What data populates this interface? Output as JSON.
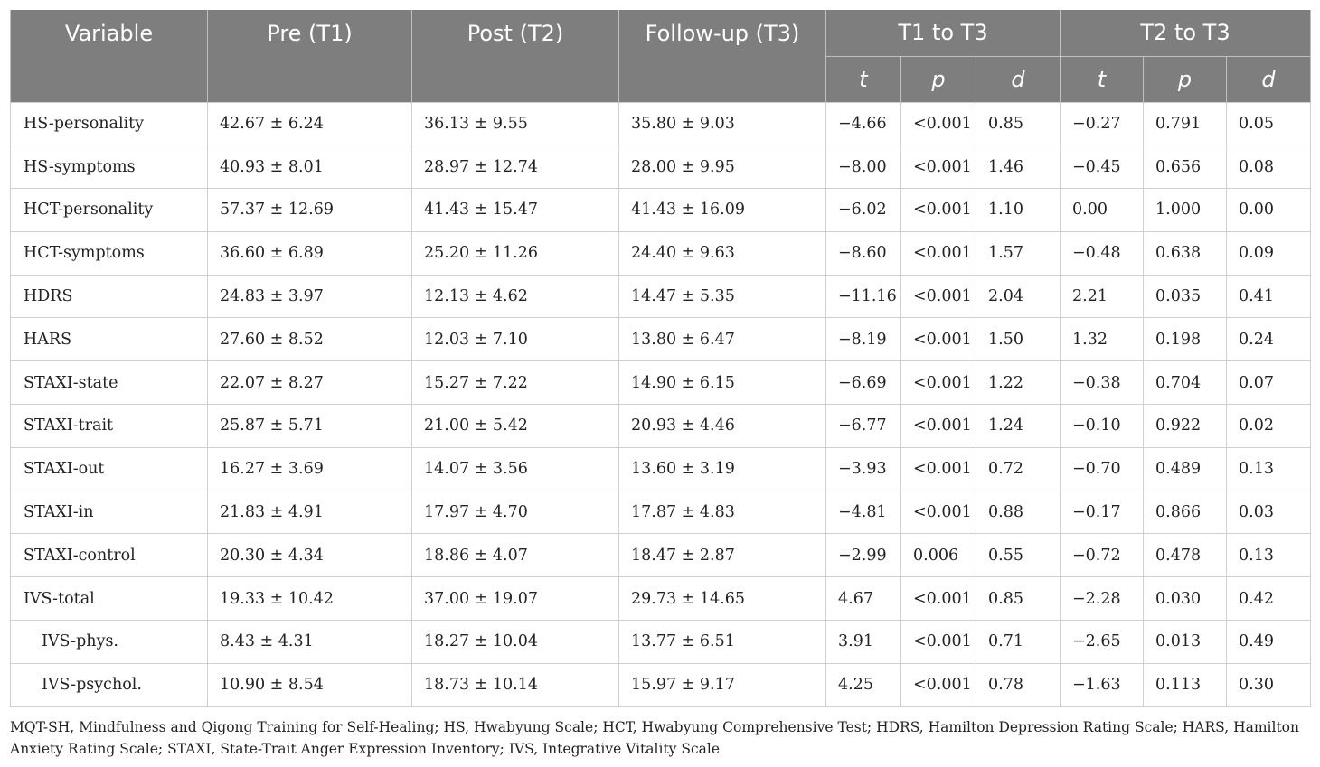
{
  "header": {
    "variable": "Variable",
    "pre": "Pre (T1)",
    "post": "Post (T2)",
    "followup": "Follow-up (T3)",
    "group1": "T1 to T3",
    "group2": "T2 to T3",
    "t": "t",
    "p": "p",
    "d": "d"
  },
  "rows": [
    {
      "variable": "HS-personality",
      "pre": "42.67 ± 6.24",
      "post": "36.13 ± 9.55",
      "followup": "35.80 ± 9.03",
      "t1": "−4.66",
      "p1": "<0.001",
      "d1": "0.85",
      "t2": "−0.27",
      "p2": "0.791",
      "d2": "0.05"
    },
    {
      "variable": "HS-symptoms",
      "pre": "40.93 ± 8.01",
      "post": "28.97 ± 12.74",
      "followup": "28.00 ± 9.95",
      "t1": "−8.00",
      "p1": "<0.001",
      "d1": "1.46",
      "t2": "−0.45",
      "p2": "0.656",
      "d2": "0.08"
    },
    {
      "variable": "HCT-personality",
      "pre": "57.37 ± 12.69",
      "post": "41.43 ± 15.47",
      "followup": "41.43 ± 16.09",
      "t1": "−6.02",
      "p1": "<0.001",
      "d1": "1.10",
      "t2": "0.00",
      "p2": "1.000",
      "d2": "0.00"
    },
    {
      "variable": "HCT-symptoms",
      "pre": "36.60 ± 6.89",
      "post": "25.20 ± 11.26",
      "followup": "24.40 ± 9.63",
      "t1": "−8.60",
      "p1": "<0.001",
      "d1": "1.57",
      "t2": "−0.48",
      "p2": "0.638",
      "d2": "0.09"
    },
    {
      "variable": "HDRS",
      "pre": "24.83 ± 3.97",
      "post": "12.13 ± 4.62",
      "followup": "14.47 ± 5.35",
      "t1": "−11.16",
      "p1": "<0.001",
      "d1": "2.04",
      "t2": "2.21",
      "p2": "0.035",
      "d2": "0.41"
    },
    {
      "variable": "HARS",
      "pre": "27.60 ± 8.52",
      "post": "12.03 ± 7.10",
      "followup": "13.80 ± 6.47",
      "t1": "−8.19",
      "p1": "<0.001",
      "d1": "1.50",
      "t2": "1.32",
      "p2": "0.198",
      "d2": "0.24"
    },
    {
      "variable": "STAXI-state",
      "pre": "22.07 ± 8.27",
      "post": "15.27 ± 7.22",
      "followup": "14.90 ± 6.15",
      "t1": "−6.69",
      "p1": "<0.001",
      "d1": "1.22",
      "t2": "−0.38",
      "p2": "0.704",
      "d2": "0.07"
    },
    {
      "variable": "STAXI-trait",
      "pre": "25.87 ± 5.71",
      "post": "21.00 ± 5.42",
      "followup": "20.93 ± 4.46",
      "t1": "−6.77",
      "p1": "<0.001",
      "d1": "1.24",
      "t2": "−0.10",
      "p2": "0.922",
      "d2": "0.02"
    },
    {
      "variable": "STAXI-out",
      "pre": "16.27 ± 3.69",
      "post": "14.07 ± 3.56",
      "followup": "13.60 ± 3.19",
      "t1": "−3.93",
      "p1": "<0.001",
      "d1": "0.72",
      "t2": "−0.70",
      "p2": "0.489",
      "d2": "0.13"
    },
    {
      "variable": "STAXI-in",
      "pre": "21.83 ± 4.91",
      "post": "17.97 ± 4.70",
      "followup": "17.87 ± 4.83",
      "t1": "−4.81",
      "p1": "<0.001",
      "d1": "0.88",
      "t2": "−0.17",
      "p2": "0.866",
      "d2": "0.03"
    },
    {
      "variable": "STAXI-control",
      "pre": "20.30 ± 4.34",
      "post": "18.86 ± 4.07",
      "followup": "18.47 ± 2.87",
      "t1": "−2.99",
      "p1": "0.006",
      "d1": "0.55",
      "t2": "−0.72",
      "p2": "0.478",
      "d2": "0.13"
    },
    {
      "variable": "IVS-total",
      "pre": "19.33 ± 10.42",
      "post": "37.00 ± 19.07",
      "followup": "29.73 ± 14.65",
      "t1": "4.67",
      "p1": "<0.001",
      "d1": "0.85",
      "t2": "−2.28",
      "p2": "0.030",
      "d2": "0.42"
    },
    {
      "variable": "IVS-phys.",
      "pre": "8.43 ± 4.31",
      "post": "18.27 ± 10.04",
      "followup": "13.77 ± 6.51",
      "t1": "3.91",
      "p1": "<0.001",
      "d1": "0.71",
      "t2": "−2.65",
      "p2": "0.013",
      "d2": "0.49"
    },
    {
      "variable": "IVS-psychol.",
      "pre": "10.90 ± 8.54",
      "post": "18.73 ± 10.14",
      "followup": "15.97 ± 9.17",
      "t1": "4.25",
      "p1": "<0.001",
      "d1": "0.78",
      "t2": "−1.63",
      "p2": "0.113",
      "d2": "0.30"
    }
  ],
  "footnote": "MQT-SH, Mindfulness and Qigong Training for Self-Healing; HS, Hwabyung Scale; HCT, Hwabyung Comprehensive Test; HDRS, Hamilton Depression Rating Scale; HARS, Hamilton Anxiety Rating Scale; STAXI, State-Trait Anger Expression Inventory; IVS, Integrative Vitality Scale"
}
